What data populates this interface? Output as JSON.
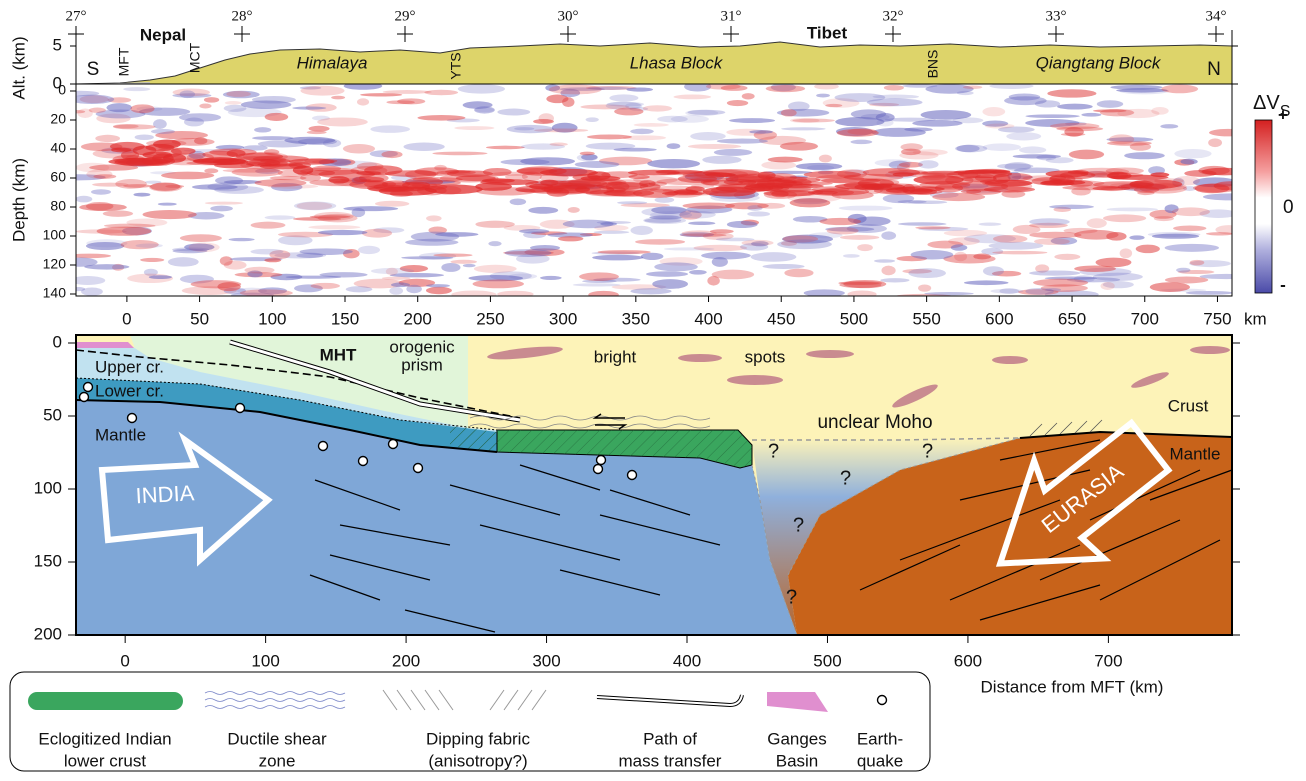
{
  "top_panel": {
    "longitudes": [
      "27°",
      "28°",
      "29°",
      "30°",
      "31°",
      "32°",
      "33°",
      "34°"
    ],
    "labels": {
      "south": "S",
      "mft": "MFT",
      "nepal": "Nepal",
      "mct": "MCT",
      "himalaya": "Himalaya",
      "yts": "YTS",
      "lhasa": "Lhasa Block",
      "tibet": "Tibet",
      "bns": "BNS",
      "qiangtang": "Qiangtang Block",
      "north": "N"
    },
    "altitude_axis": {
      "label": "Alt. (km)",
      "ylim": [
        0,
        5
      ],
      "yticks": [
        0,
        5
      ]
    },
    "depth_axis": {
      "label": "Depth (km)",
      "ylim": [
        0,
        140
      ],
      "yticks": [
        0,
        20,
        40,
        60,
        80,
        100,
        120,
        140
      ]
    },
    "distance_axis": {
      "xlim": [
        -35,
        760
      ],
      "xticks": [
        0,
        50,
        100,
        150,
        200,
        250,
        300,
        350,
        400,
        450,
        500,
        550,
        600,
        650,
        700,
        750
      ],
      "unit": "km"
    },
    "colorbar": {
      "label": "ΔV",
      "label_subscript": "S",
      "plus": "+",
      "zero": "0",
      "minus": "-"
    }
  },
  "bottom_panel": {
    "ylim": [
      0,
      200
    ],
    "yticks": [
      0,
      50,
      100,
      150,
      200
    ],
    "xlim": [
      -35,
      788
    ],
    "xticks": [
      0,
      100,
      200,
      300,
      400,
      500,
      600,
      700
    ],
    "xlabel": "Distance from MFT (km)",
    "labels": {
      "mht": "MHT",
      "orogenic": "orogenic",
      "prism": "prism",
      "bright": "bright",
      "spots": "spots",
      "upper_crust": "Upper cr.",
      "lower_crust": "Lower cr.",
      "india_mantle": "Mantle",
      "india": "INDIA",
      "unclear_moho": "unclear Moho",
      "crust": "Crust",
      "eurasia_mantle": "Mantle",
      "eurasia": "EURASIA"
    },
    "questions": [
      "?",
      "?",
      "?",
      "?",
      "?"
    ]
  },
  "legend": [
    {
      "lines": [
        "Eclogitized Indian",
        "lower crust"
      ]
    },
    {
      "lines": [
        "Ductile shear",
        "zone"
      ]
    },
    {
      "lines": [
        "Dipping fabric",
        "(anisotropy?)"
      ]
    },
    {
      "lines": [
        "Path of",
        "mass transfer"
      ]
    },
    {
      "lines": [
        "Ganges",
        "Basin"
      ]
    },
    {
      "lines": [
        "Earth-",
        "quake"
      ]
    }
  ]
}
